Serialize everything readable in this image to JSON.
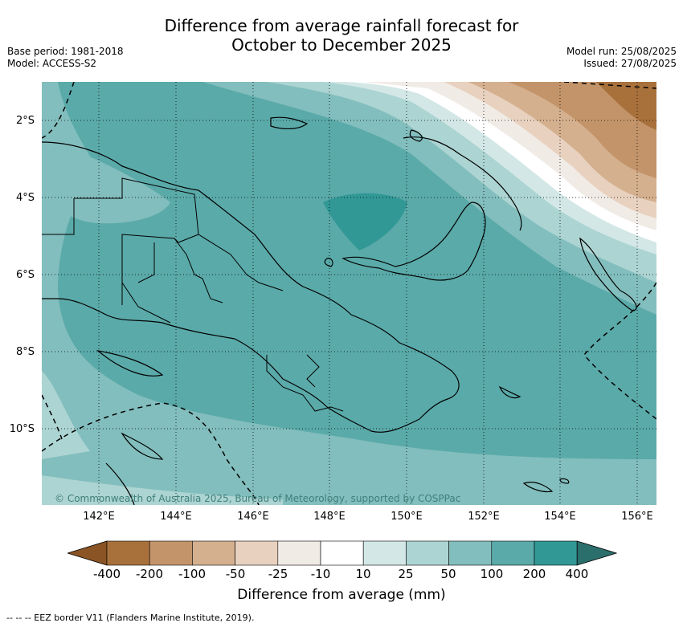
{
  "title_line1": "Difference from average rainfall forecast for",
  "title_line2": "October to December 2025",
  "meta": {
    "base_period": "Base period: 1981-2018",
    "model": "Model: ACCESS-S2",
    "model_run": "Model run: 25/08/2025",
    "issued": "Issued: 27/08/2025"
  },
  "lat_ticks": [
    "2°S",
    "4°S",
    "6°S",
    "8°S",
    "10°S"
  ],
  "lon_ticks": [
    "142°E",
    "144°E",
    "146°E",
    "148°E",
    "150°E",
    "152°E",
    "154°E",
    "156°E"
  ],
  "copyright": "© Commonwealth of Australia 2025, Bureau of Meteorology, supported by COSPPac",
  "colorbar": {
    "labels": [
      "-400",
      "-200",
      "-100",
      "-50",
      "-25",
      "-10",
      "10",
      "25",
      "50",
      "100",
      "200",
      "400"
    ],
    "colors": [
      "#8a5424",
      "#a8713c",
      "#c3946a",
      "#d4b08f",
      "#e8d2bf",
      "#f1ebe6",
      "#ffffff",
      "#d3e8e6",
      "#acd4d2",
      "#82bebd",
      "#5aaaa9",
      "#319896",
      "#2b6f6c"
    ],
    "label": "Difference from average (mm)"
  },
  "eez_note": "--  --  -- EEZ border V11 (Flanders Marine Institute, 2019)."
}
